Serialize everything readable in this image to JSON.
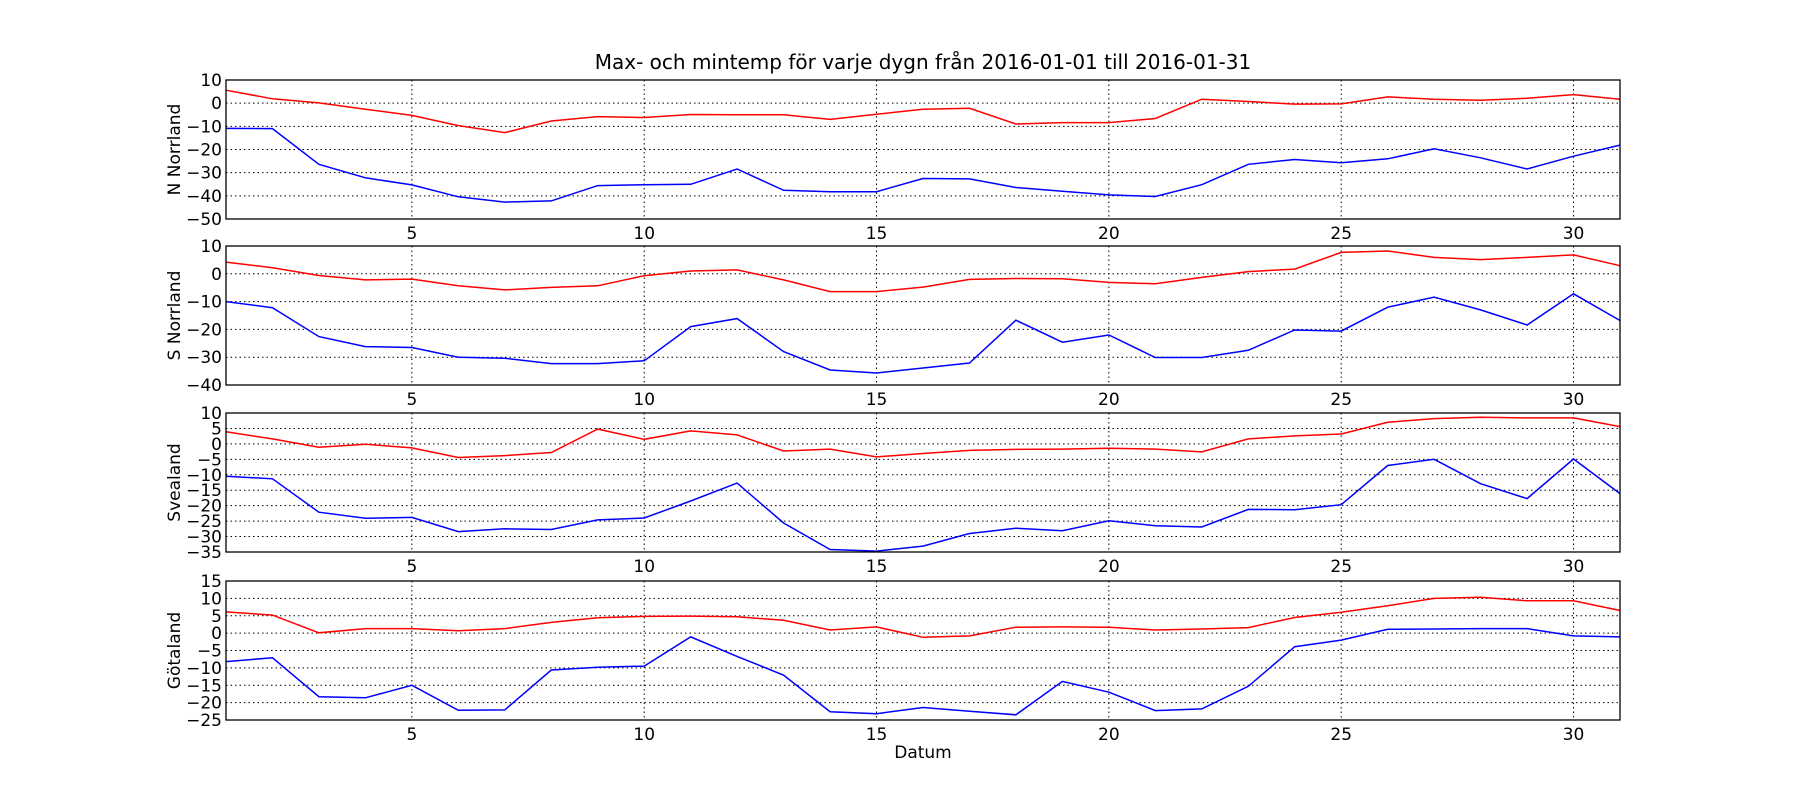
{
  "chart_data": {
    "type": "line",
    "title": "Max- och mintemp för varje dygn från 2016-01-01 till 2016-01-31",
    "xlabel": "Datum",
    "xlim": [
      1,
      31
    ],
    "xticks": [
      5,
      10,
      15,
      20,
      25,
      30
    ],
    "grid": true,
    "colors": {
      "max": "#ff0000",
      "min": "#0000ff"
    },
    "x": [
      1,
      2,
      3,
      4,
      5,
      6,
      7,
      8,
      9,
      10,
      11,
      12,
      13,
      14,
      15,
      16,
      17,
      18,
      19,
      20,
      21,
      22,
      23,
      24,
      25,
      26,
      27,
      28,
      29,
      30,
      31
    ],
    "subplots": [
      {
        "ylabel": "N Norrland",
        "ylim": [
          -50,
          10
        ],
        "yticks": [
          -50,
          -40,
          -30,
          -20,
          -10,
          0,
          10
        ],
        "series": [
          {
            "name": "max",
            "values": [
              5.6,
              1.9,
              0.1,
              -2.6,
              -5.3,
              -9.7,
              -12.7,
              -7.7,
              -5.8,
              -6.2,
              -4.9,
              -5.0,
              -5.0,
              -7.0,
              -4.8,
              -2.6,
              -2.2,
              -9.0,
              -8.4,
              -8.4,
              -6.6,
              1.7,
              0.7,
              -0.4,
              -0.3,
              2.7,
              1.7,
              1.3,
              2.1,
              3.7,
              1.7
            ]
          },
          {
            "name": "min",
            "values": [
              -10.9,
              -11.0,
              -26.4,
              -32.2,
              -35.3,
              -40.4,
              -42.7,
              -42.2,
              -35.6,
              -35.2,
              -35.0,
              -28.4,
              -37.6,
              -38.2,
              -38.2,
              -32.5,
              -32.7,
              -36.4,
              -38.0,
              -39.6,
              -40.3,
              -35.2,
              -26.4,
              -24.3,
              -25.7,
              -24.0,
              -19.7,
              -23.6,
              -28.4,
              -22.9,
              -18.1
            ]
          }
        ]
      },
      {
        "ylabel": "S Norrland",
        "ylim": [
          -40,
          10
        ],
        "yticks": [
          -40,
          -30,
          -20,
          -10,
          0,
          10
        ],
        "series": [
          {
            "name": "max",
            "values": [
              4.2,
              2.2,
              -0.6,
              -2.2,
              -1.9,
              -4.3,
              -5.8,
              -4.9,
              -4.3,
              -0.7,
              1.0,
              1.4,
              -2.2,
              -6.4,
              -6.4,
              -4.8,
              -2.0,
              -1.7,
              -1.8,
              -3.1,
              -3.6,
              -1.3,
              0.8,
              1.7,
              7.7,
              8.2,
              5.9,
              5.1,
              5.9,
              6.8,
              2.9
            ]
          },
          {
            "name": "min",
            "values": [
              -10.0,
              -12.2,
              -22.6,
              -26.2,
              -26.5,
              -30.0,
              -30.4,
              -32.3,
              -32.3,
              -31.3,
              -19.0,
              -16.1,
              -28.0,
              -34.6,
              -35.7,
              -33.9,
              -32.1,
              -16.7,
              -24.6,
              -22.0,
              -30.1,
              -30.1,
              -27.5,
              -20.2,
              -20.6,
              -12.0,
              -8.4,
              -13.0,
              -18.4,
              -7.2,
              -16.8
            ]
          }
        ]
      },
      {
        "ylabel": "Svealand",
        "ylim": [
          -35,
          10
        ],
        "yticks": [
          -35,
          -30,
          -25,
          -20,
          -15,
          -10,
          -5,
          0,
          5,
          10
        ],
        "series": [
          {
            "name": "max",
            "values": [
              3.9,
              1.6,
              -1.1,
              -0.1,
              -1.3,
              -4.4,
              -3.8,
              -2.8,
              4.8,
              1.5,
              4.2,
              2.9,
              -2.3,
              -1.7,
              -4.2,
              -3.1,
              -2.1,
              -1.8,
              -1.7,
              -1.4,
              -1.7,
              -2.6,
              1.6,
              2.6,
              3.2,
              7.0,
              8.2,
              8.6,
              8.4,
              8.4,
              5.6
            ]
          },
          {
            "name": "min",
            "values": [
              -10.5,
              -11.3,
              -22.1,
              -24.1,
              -23.8,
              -28.4,
              -27.5,
              -27.7,
              -24.6,
              -24.0,
              -18.5,
              -12.7,
              -25.6,
              -34.2,
              -34.7,
              -33.1,
              -29.0,
              -27.3,
              -28.1,
              -24.9,
              -26.5,
              -26.9,
              -21.2,
              -21.3,
              -19.7,
              -7.0,
              -5.0,
              -12.9,
              -17.7,
              -4.9,
              -16.1
            ]
          }
        ]
      },
      {
        "ylabel": "Götaland",
        "ylim": [
          -25,
          15
        ],
        "yticks": [
          -25,
          -20,
          -15,
          -10,
          -5,
          0,
          5,
          10,
          15
        ],
        "series": [
          {
            "name": "max",
            "values": [
              6.1,
              5.2,
              0.1,
              1.3,
              1.3,
              0.7,
              1.3,
              3.1,
              4.4,
              4.8,
              4.9,
              4.7,
              3.7,
              0.9,
              1.8,
              -1.2,
              -0.8,
              1.7,
              1.8,
              1.7,
              0.9,
              1.2,
              1.6,
              4.5,
              6.0,
              7.9,
              10.0,
              10.3,
              9.3,
              9.3,
              6.5
            ]
          },
          {
            "name": "min",
            "values": [
              -8.2,
              -7.1,
              -18.3,
              -18.6,
              -15.0,
              -22.2,
              -22.1,
              -10.6,
              -9.8,
              -9.5,
              -1.1,
              -6.7,
              -12.1,
              -22.6,
              -23.2,
              -21.4,
              -22.5,
              -23.5,
              -13.9,
              -17.0,
              -22.3,
              -21.8,
              -15.3,
              -3.9,
              -2.0,
              1.1,
              1.2,
              1.3,
              1.3,
              -0.8,
              -1.1
            ]
          }
        ]
      }
    ]
  }
}
